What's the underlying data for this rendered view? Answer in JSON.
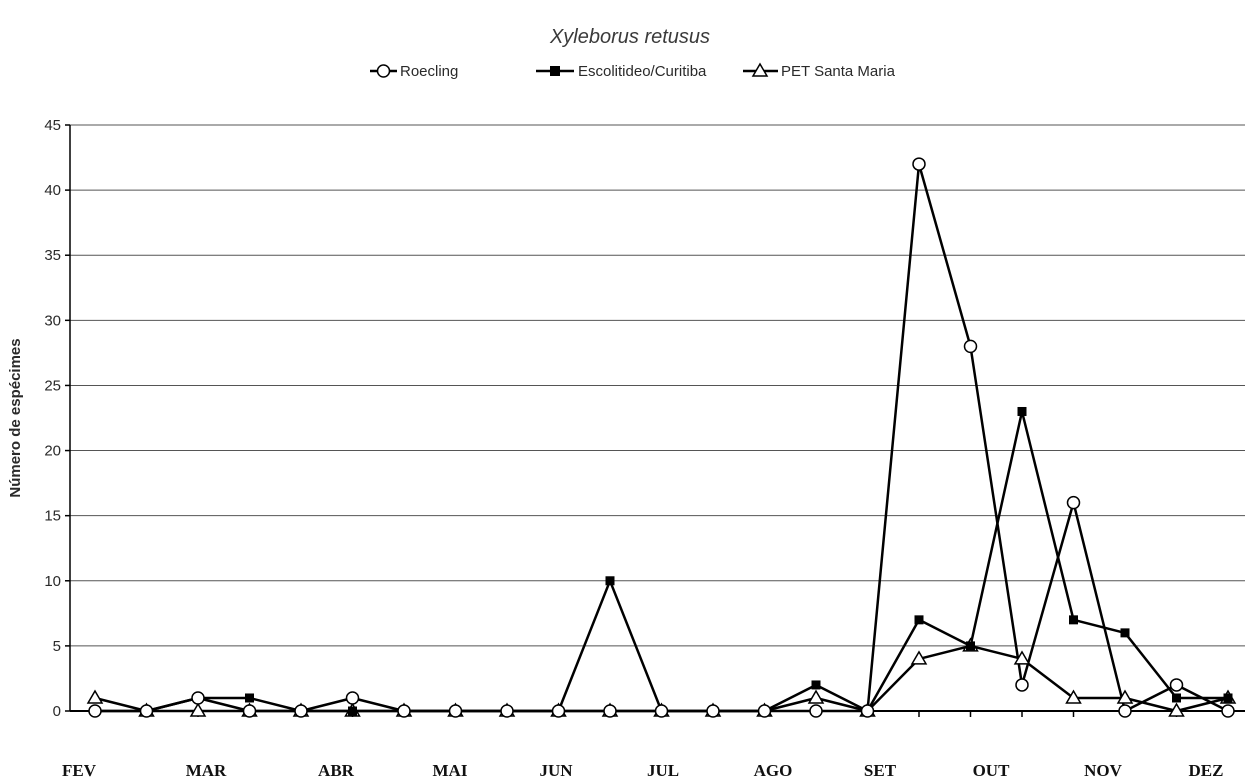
{
  "chart_data": {
    "type": "line",
    "title": "Xyleborus retusus",
    "ylabel": "Número de espécimes",
    "ylim": [
      0,
      45
    ],
    "yticks": [
      "0",
      "5",
      "10",
      "15",
      "20",
      "25",
      "30",
      "35",
      "40",
      "45"
    ],
    "grid": true,
    "legend_position": "top",
    "month_labels": [
      "FEV",
      "MAR",
      "ABR",
      "MAI",
      "JUN",
      "JUL",
      "AGO",
      "SET",
      "OUT",
      "NOV",
      "DEZ"
    ],
    "series": [
      {
        "name": "Roecling",
        "marker": "circle-open",
        "values": [
          0,
          0,
          1,
          0,
          0,
          1,
          0,
          0,
          0,
          0,
          0,
          0,
          0,
          0,
          0,
          0,
          42,
          28,
          2,
          16,
          0,
          2,
          0
        ]
      },
      {
        "name": "Escolitideo/Curitiba",
        "marker": "square-filled",
        "values": [
          0,
          0,
          1,
          1,
          0,
          0,
          0,
          0,
          0,
          0,
          10,
          0,
          0,
          0,
          2,
          0,
          7,
          5,
          23,
          7,
          6,
          1,
          1
        ]
      },
      {
        "name": "PET Santa Maria",
        "marker": "triangle-open",
        "values": [
          1,
          0,
          0,
          0,
          0,
          0,
          0,
          0,
          0,
          0,
          0,
          0,
          0,
          0,
          1,
          0,
          4,
          5,
          4,
          1,
          1,
          0,
          1
        ]
      }
    ]
  }
}
